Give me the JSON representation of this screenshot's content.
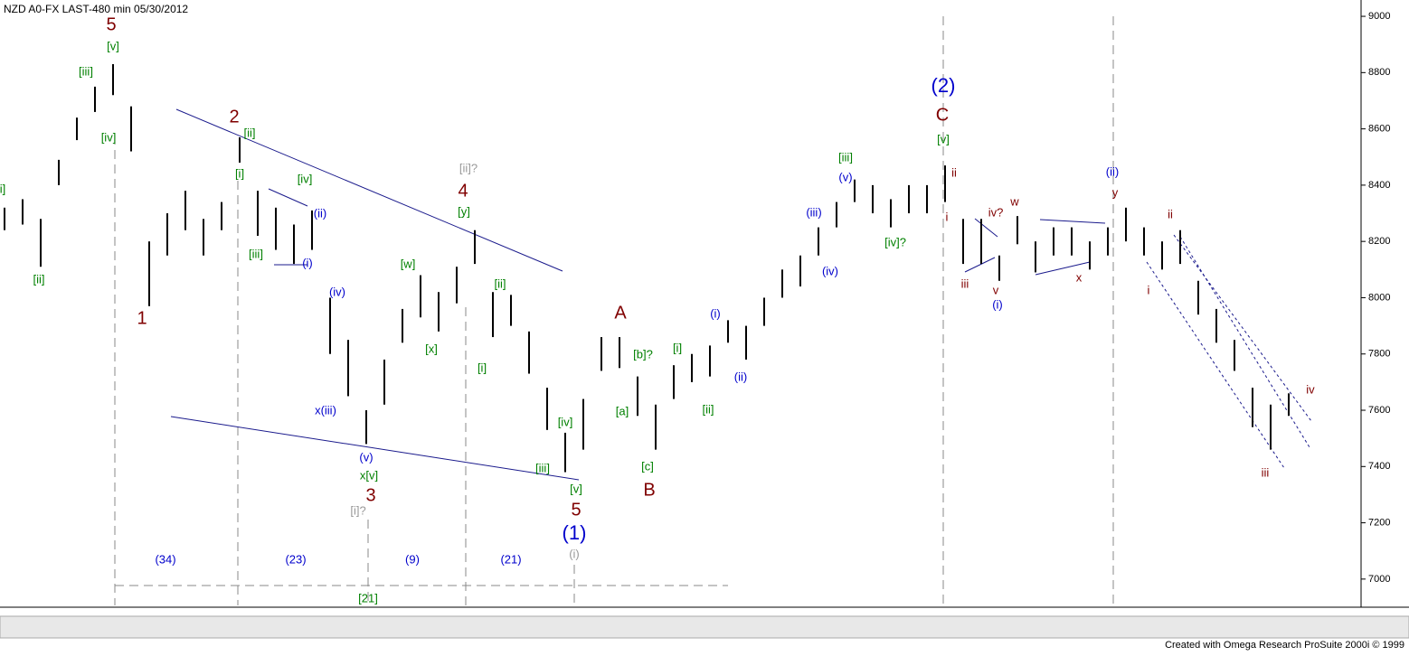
{
  "chart_data": {
    "type": "range-bar",
    "title": "NZD A0-FX LAST-480 min   05/30/2012",
    "footer": "Created with Omega Research ProSuite 2000i © 1999",
    "color": "#000000",
    "high": [
      8320,
      8350,
      8280,
      8490,
      8640,
      8750,
      8830,
      8680,
      8200,
      8300,
      8380,
      8280,
      8340,
      8570,
      8380,
      8320,
      8260,
      8310,
      8000,
      7850,
      7600,
      7780,
      7960,
      8080,
      8020,
      8110,
      8240,
      8020,
      8010,
      7880,
      7680,
      7520,
      7640,
      7860,
      7860,
      7720,
      7620,
      7760,
      7800,
      7830,
      7920,
      7900,
      8000,
      8100,
      8150,
      8250,
      8340,
      8420,
      8400,
      8350,
      8400,
      8400,
      8470,
      8280,
      8280,
      8150,
      8290,
      8200,
      8250,
      8250,
      8200,
      8250,
      8320,
      8250,
      8200,
      8240,
      8060,
      7960,
      7850,
      7680,
      7620,
      7660
    ],
    "low": [
      8240,
      8260,
      8110,
      8400,
      8560,
      8660,
      8720,
      8520,
      7970,
      8150,
      8240,
      8150,
      8240,
      8480,
      8220,
      8170,
      8120,
      8170,
      7800,
      7650,
      7480,
      7620,
      7840,
      7930,
      7880,
      7980,
      8120,
      7860,
      7900,
      7730,
      7530,
      7380,
      7460,
      7740,
      7750,
      7580,
      7460,
      7640,
      7700,
      7720,
      7840,
      7780,
      7900,
      8000,
      8040,
      8150,
      8250,
      8340,
      8300,
      8250,
      8300,
      8300,
      8340,
      8120,
      8120,
      8060,
      8190,
      8090,
      8150,
      8150,
      8100,
      8150,
      8200,
      8150,
      8100,
      8120,
      7940,
      7840,
      7740,
      7540,
      7460,
      7580
    ],
    "ylim": [
      6900,
      9058
    ],
    "yticks": [
      7000,
      7200,
      7400,
      7600,
      7800,
      8000,
      8200,
      8400,
      8600,
      8800,
      9000
    ],
    "annotations": [
      {
        "text": "5",
        "color": "#800000"
      },
      {
        "text": "[v]",
        "color": "#008000"
      },
      {
        "text": "[iii]",
        "color": "#008000"
      },
      {
        "text": "[iv]",
        "color": "#008000"
      },
      {
        "text": "i]",
        "color": "#008000"
      },
      {
        "text": "[ii]",
        "color": "#008000"
      },
      {
        "text": "1",
        "color": "#800000"
      },
      {
        "text": "2",
        "color": "#800000"
      },
      {
        "text": "[ii]",
        "color": "#008000"
      },
      {
        "text": "[i]",
        "color": "#008000"
      },
      {
        "text": "[iv]",
        "color": "#008000"
      },
      {
        "text": "(ii)",
        "color": "#0000cc"
      },
      {
        "text": "[iii]",
        "color": "#008000"
      },
      {
        "text": "(i)",
        "color": "#0000cc"
      },
      {
        "text": "(iv)",
        "color": "#0000cc"
      },
      {
        "text": "x(iii)",
        "color": "#0000cc"
      },
      {
        "text": "(v)",
        "color": "#0000cc"
      },
      {
        "text": "x[v]",
        "color": "#008000"
      },
      {
        "text": "3",
        "color": "#800000"
      },
      {
        "text": "[i]?",
        "color": "#999999"
      },
      {
        "text": "4",
        "color": "#800000"
      },
      {
        "text": "[ii]?",
        "color": "#999999"
      },
      {
        "text": "[y]",
        "color": "#008000"
      },
      {
        "text": "[w]",
        "color": "#008000"
      },
      {
        "text": "[x]",
        "color": "#008000"
      },
      {
        "text": "[ii]",
        "color": "#008000"
      },
      {
        "text": "[i]",
        "color": "#008000"
      },
      {
        "text": "[iv]",
        "color": "#008000"
      },
      {
        "text": "[iii]",
        "color": "#008000"
      },
      {
        "text": "[v]",
        "color": "#008000"
      },
      {
        "text": "5",
        "color": "#800000"
      },
      {
        "text": "(1)",
        "color": "#0000cc"
      },
      {
        "text": "(i)",
        "color": "#999999"
      },
      {
        "text": "A",
        "color": "#800000"
      },
      {
        "text": "[b]?",
        "color": "#008000"
      },
      {
        "text": "[a]",
        "color": "#008000"
      },
      {
        "text": "[c]",
        "color": "#008000"
      },
      {
        "text": "B",
        "color": "#800000"
      },
      {
        "text": "[i]",
        "color": "#008000"
      },
      {
        "text": "[ii]",
        "color": "#008000"
      },
      {
        "text": "(i)",
        "color": "#0000cc"
      },
      {
        "text": "(ii)",
        "color": "#0000cc"
      },
      {
        "text": "(iii)",
        "color": "#0000cc"
      },
      {
        "text": "(iv)",
        "color": "#0000cc"
      },
      {
        "text": "(v)",
        "color": "#0000cc"
      },
      {
        "text": "[iii]",
        "color": "#008000"
      },
      {
        "text": "[iv]?",
        "color": "#008000"
      },
      {
        "text": "(2)",
        "color": "#0000cc"
      },
      {
        "text": "C",
        "color": "#800000"
      },
      {
        "text": "[v]",
        "color": "#008000"
      },
      {
        "text": "ii",
        "color": "#800000"
      },
      {
        "text": "i",
        "color": "#800000"
      },
      {
        "text": "iii",
        "color": "#800000"
      },
      {
        "text": "v",
        "color": "#800000"
      },
      {
        "text": "(i)",
        "color": "#0000cc"
      },
      {
        "text": "iv?",
        "color": "#800000"
      },
      {
        "text": "w",
        "color": "#800000"
      },
      {
        "text": "x",
        "color": "#800000"
      },
      {
        "text": "(ii)",
        "color": "#0000cc"
      },
      {
        "text": "y",
        "color": "#800000"
      },
      {
        "text": "ii",
        "color": "#800000"
      },
      {
        "text": "i",
        "color": "#800000"
      },
      {
        "text": "iv",
        "color": "#800000"
      },
      {
        "text": "iii",
        "color": "#800000"
      },
      {
        "text": "(34)",
        "color": "#0000cc"
      },
      {
        "text": "(23)",
        "color": "#0000cc"
      },
      {
        "text": "(9)",
        "color": "#0000cc"
      },
      {
        "text": "(21)",
        "color": "#0000cc"
      },
      {
        "text": "[21]",
        "color": "#008000"
      }
    ]
  }
}
